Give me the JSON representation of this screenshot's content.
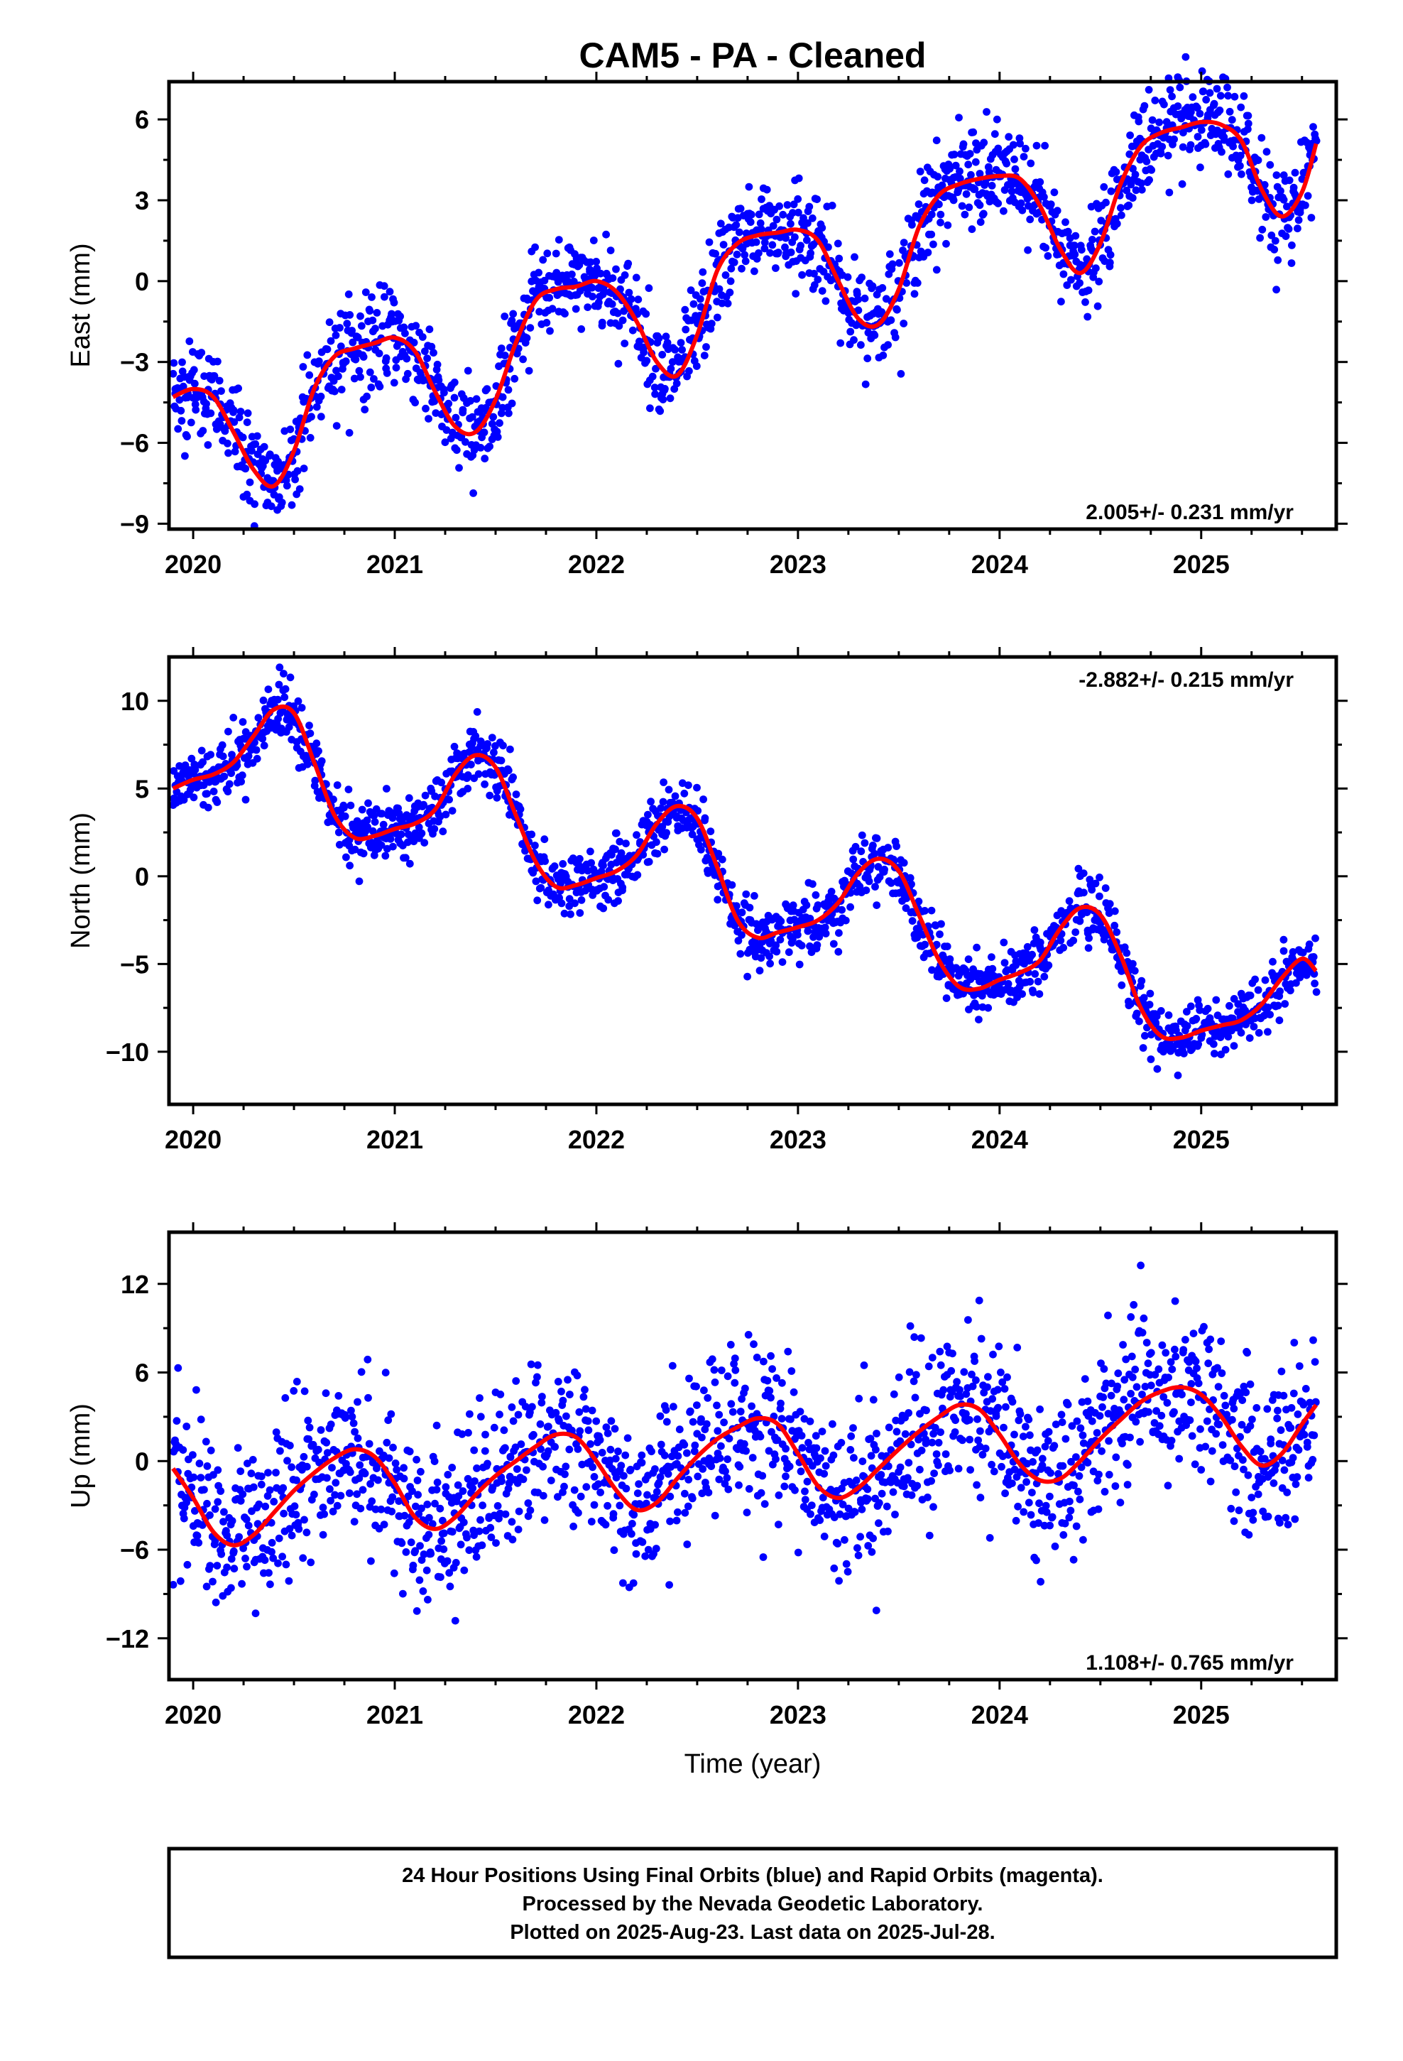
{
  "title": "CAM5  - PA - Cleaned",
  "footer": {
    "lines": [
      "24 Hour Positions Using Final Orbits (blue) and Rapid Orbits (magenta).",
      "Processed by the Nevada Geodetic Laboratory.",
      "Plotted on 2025-Aug-23. Last data on 2025-Jul-28."
    ]
  },
  "colors": {
    "points": "#0000ff",
    "fit": "#ff0000",
    "frame": "#000000"
  },
  "chart_data": [
    {
      "type": "scatter",
      "ylabel": "East (mm)",
      "xlabel": "",
      "xlim": [
        2019.88,
        2025.67
      ],
      "ylim": [
        -9.2,
        7.4
      ],
      "xticks": [
        2020,
        2021,
        2022,
        2023,
        2024,
        2025
      ],
      "yticks": [
        6,
        3,
        0,
        -3,
        -6,
        -9
      ],
      "ytick_labels": [
        "6",
        "3",
        "0",
        "−3",
        "−6",
        "−9"
      ],
      "rate_label": "2.005+/- 0.231 mm/yr",
      "rate_position": "bottom-right",
      "series": [
        {
          "name": "",
          "kind": "points",
          "description_x_start": 2019.9,
          "description_x_end": 2025.57
        },
        {
          "name": "",
          "kind": "fit",
          "x": [
            2019.9,
            2020.0,
            2020.1,
            2020.2,
            2020.3,
            2020.4,
            2020.5,
            2020.6,
            2020.7,
            2020.8,
            2020.9,
            2021.0,
            2021.1,
            2021.2,
            2021.3,
            2021.4,
            2021.5,
            2021.6,
            2021.7,
            2021.8,
            2021.9,
            2022.0,
            2022.1,
            2022.2,
            2022.3,
            2022.4,
            2022.5,
            2022.6,
            2022.7,
            2022.8,
            2022.9,
            2023.0,
            2023.1,
            2023.2,
            2023.3,
            2023.4,
            2023.5,
            2023.6,
            2023.7,
            2023.8,
            2023.9,
            2024.0,
            2024.1,
            2024.2,
            2024.3,
            2024.4,
            2024.5,
            2024.6,
            2024.7,
            2024.8,
            2024.9,
            2025.0,
            2025.1,
            2025.2,
            2025.3,
            2025.4,
            2025.5,
            2025.57
          ],
          "y": [
            -4.3,
            -4.0,
            -4.3,
            -5.6,
            -7.0,
            -7.6,
            -6.3,
            -4.0,
            -2.8,
            -2.5,
            -2.3,
            -2.1,
            -2.6,
            -4.1,
            -5.4,
            -5.6,
            -4.4,
            -2.3,
            -0.7,
            -0.3,
            -0.2,
            0.0,
            -0.4,
            -1.5,
            -3.0,
            -3.5,
            -2.0,
            0.4,
            1.4,
            1.7,
            1.8,
            1.9,
            1.5,
            0.0,
            -1.4,
            -1.6,
            -0.3,
            2.0,
            3.2,
            3.6,
            3.8,
            3.9,
            3.8,
            2.8,
            1.2,
            0.3,
            1.4,
            3.6,
            5.0,
            5.5,
            5.7,
            5.9,
            5.8,
            5.2,
            3.4,
            2.4,
            3.3,
            5.1
          ]
        }
      ]
    },
    {
      "type": "scatter",
      "ylabel": "North (mm)",
      "xlabel": "",
      "xlim": [
        2019.88,
        2025.67
      ],
      "ylim": [
        -13,
        12.5
      ],
      "xticks": [
        2020,
        2021,
        2022,
        2023,
        2024,
        2025
      ],
      "yticks": [
        10,
        5,
        0,
        -5,
        -10
      ],
      "ytick_labels": [
        "10",
        "5",
        "0",
        "−5",
        "−10"
      ],
      "rate_label": "-2.882+/- 0.215 mm/yr",
      "rate_position": "top-right",
      "series": [
        {
          "name": "",
          "kind": "points",
          "description_x_start": 2019.9,
          "description_x_end": 2025.57
        },
        {
          "name": "",
          "kind": "fit",
          "x": [
            2019.9,
            2020.0,
            2020.1,
            2020.2,
            2020.3,
            2020.4,
            2020.5,
            2020.6,
            2020.7,
            2020.8,
            2020.9,
            2021.0,
            2021.1,
            2021.2,
            2021.3,
            2021.4,
            2021.5,
            2021.6,
            2021.7,
            2021.8,
            2021.9,
            2022.0,
            2022.1,
            2022.2,
            2022.3,
            2022.4,
            2022.5,
            2022.6,
            2022.7,
            2022.8,
            2022.9,
            2023.0,
            2023.1,
            2023.2,
            2023.3,
            2023.4,
            2023.5,
            2023.6,
            2023.7,
            2023.8,
            2023.9,
            2024.0,
            2024.1,
            2024.2,
            2024.3,
            2024.4,
            2024.5,
            2024.6,
            2024.7,
            2024.8,
            2024.9,
            2025.0,
            2025.1,
            2025.2,
            2025.3,
            2025.4,
            2025.5,
            2025.57
          ],
          "y": [
            5.0,
            5.5,
            5.8,
            6.5,
            8.0,
            9.5,
            9.3,
            6.5,
            3.5,
            2.2,
            2.3,
            2.7,
            3.0,
            3.8,
            5.8,
            6.9,
            6.2,
            3.5,
            0.8,
            -0.6,
            -0.5,
            -0.1,
            0.3,
            1.2,
            3.0,
            4.0,
            3.3,
            0.5,
            -2.5,
            -3.5,
            -3.2,
            -2.9,
            -2.5,
            -1.5,
            0.2,
            1.0,
            0.3,
            -2.2,
            -4.8,
            -6.3,
            -6.4,
            -5.9,
            -5.5,
            -4.8,
            -3.0,
            -1.8,
            -2.2,
            -4.5,
            -7.5,
            -9.1,
            -9.2,
            -8.8,
            -8.5,
            -8.2,
            -7.3,
            -5.8,
            -4.7,
            -5.4
          ]
        }
      ]
    },
    {
      "type": "scatter",
      "ylabel": "Up (mm)",
      "xlabel": "Time (year)",
      "xlim": [
        2019.88,
        2025.67
      ],
      "ylim": [
        -14.8,
        15.5
      ],
      "xticks": [
        2020,
        2021,
        2022,
        2023,
        2024,
        2025
      ],
      "yticks": [
        12,
        6,
        0,
        -6,
        -12
      ],
      "ytick_labels": [
        "12",
        "6",
        "0",
        "−6",
        "−12"
      ],
      "rate_label": "1.108+/- 0.765 mm/yr",
      "rate_position": "bottom-right",
      "series": [
        {
          "name": "",
          "kind": "points",
          "description_x_start": 2019.9,
          "description_x_end": 2025.57
        },
        {
          "name": "",
          "kind": "fit",
          "x": [
            2019.9,
            2020.0,
            2020.1,
            2020.2,
            2020.3,
            2020.4,
            2020.5,
            2020.6,
            2020.7,
            2020.8,
            2020.9,
            2021.0,
            2021.1,
            2021.2,
            2021.3,
            2021.4,
            2021.5,
            2021.6,
            2021.7,
            2021.8,
            2021.9,
            2022.0,
            2022.1,
            2022.2,
            2022.3,
            2022.4,
            2022.5,
            2022.6,
            2022.7,
            2022.8,
            2022.9,
            2023.0,
            2023.1,
            2023.2,
            2023.3,
            2023.4,
            2023.5,
            2023.6,
            2023.7,
            2023.8,
            2023.9,
            2024.0,
            2024.1,
            2024.2,
            2024.3,
            2024.4,
            2024.5,
            2024.6,
            2024.7,
            2024.8,
            2024.9,
            2025.0,
            2025.1,
            2025.2,
            2025.3,
            2025.4,
            2025.5,
            2025.57
          ],
          "y": [
            -0.5,
            -2.5,
            -4.8,
            -5.7,
            -5.0,
            -3.5,
            -2.0,
            -0.8,
            0.2,
            0.8,
            0.3,
            -1.5,
            -3.8,
            -4.6,
            -3.8,
            -2.3,
            -1.0,
            0.0,
            1.0,
            1.8,
            1.6,
            0.0,
            -2.0,
            -3.3,
            -2.8,
            -1.2,
            0.3,
            1.5,
            2.3,
            2.9,
            2.5,
            0.5,
            -1.7,
            -2.5,
            -1.8,
            -0.5,
            0.8,
            2.0,
            3.0,
            3.8,
            3.5,
            1.8,
            -0.2,
            -1.3,
            -1.2,
            0.0,
            1.5,
            2.8,
            4.0,
            4.7,
            5.0,
            4.5,
            3.0,
            1.0,
            -0.3,
            0.5,
            2.5,
            3.8
          ]
        }
      ]
    }
  ]
}
